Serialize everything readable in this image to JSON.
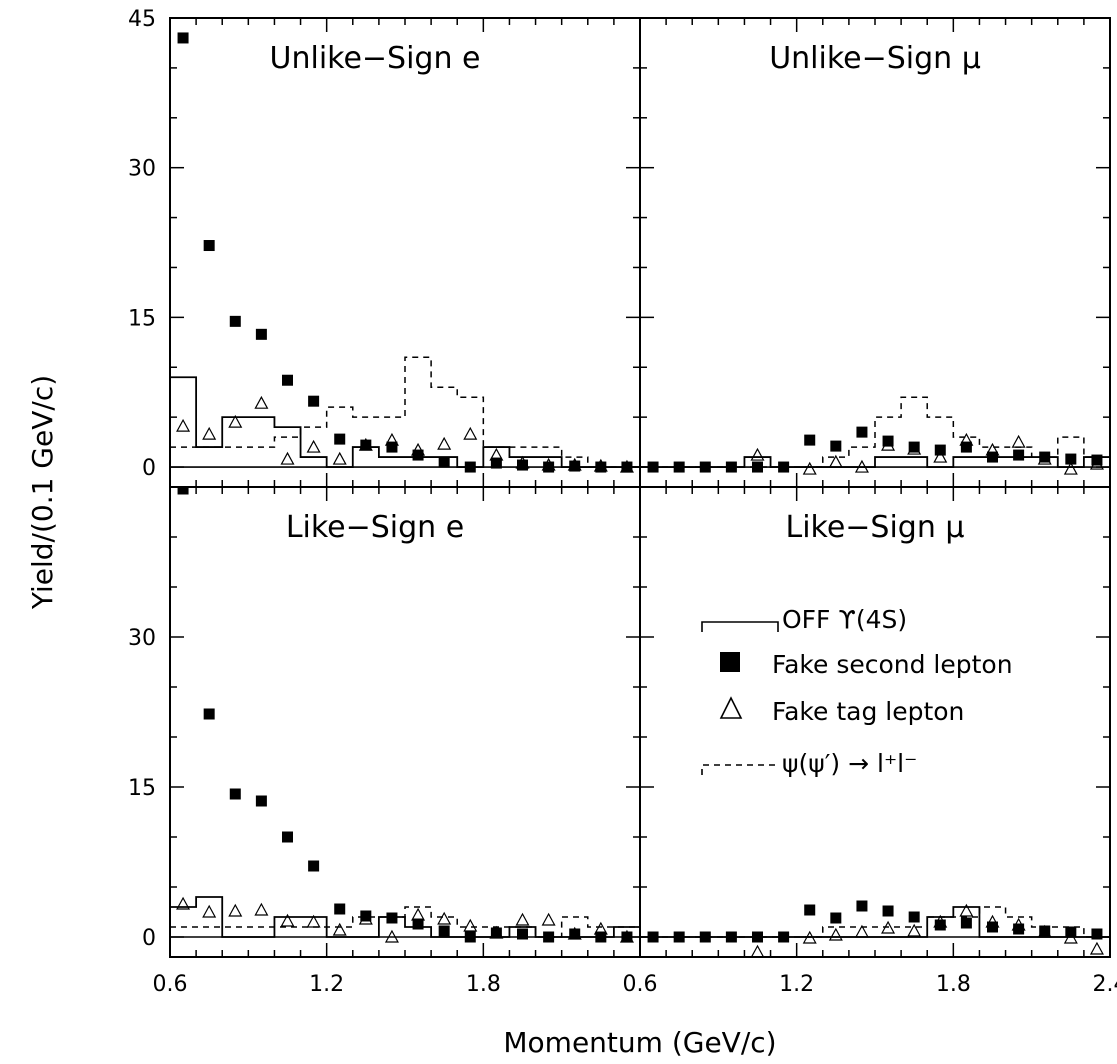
{
  "figure": {
    "ylabel": "Yield/(0.1 GeV/c)",
    "xlabel": "Momentum (GeV/c)",
    "yticks": [
      "0",
      "15",
      "30",
      "45"
    ],
    "xticks_left": [
      "0.6",
      "1.2",
      "1.8"
    ],
    "xticks_right": [
      "0.6",
      "1.2",
      "1.8",
      "2.4"
    ],
    "legend": {
      "off": "OFF ϒ(4S)",
      "fake_second": "Fake second lepton",
      "fake_tag": "Fake tag lepton",
      "psi": "ψ(ψ′) → l⁺l⁻"
    }
  },
  "chart_data": [
    {
      "type": "scatter",
      "panel": "top-left",
      "title": "Unlike−Sign e",
      "xlim": [
        0.6,
        2.4
      ],
      "ylim": [
        -2,
        45
      ],
      "bin_edges": [
        0.6,
        0.7,
        0.8,
        0.9,
        1.0,
        1.1,
        1.2,
        1.3,
        1.4,
        1.5,
        1.6,
        1.7,
        1.8,
        1.9,
        2.0,
        2.1,
        2.2,
        2.3,
        2.4,
        2.5
      ],
      "off_4s": [
        9,
        2,
        5,
        5,
        4,
        1,
        0,
        2,
        1,
        1,
        1,
        0,
        2,
        1,
        1,
        0,
        0,
        0,
        1
      ],
      "psi": [
        2,
        2,
        2,
        2,
        3,
        4,
        6,
        5,
        5,
        11,
        8,
        7,
        2,
        2,
        2,
        1,
        0,
        0,
        0
      ],
      "fake_second_x": [
        0.65,
        0.75,
        0.85,
        0.95,
        1.05,
        1.15,
        1.25,
        1.35,
        1.45,
        1.55,
        1.65,
        1.75,
        1.85,
        1.95,
        2.05,
        2.15,
        2.25,
        2.35
      ],
      "fake_second_y": [
        43,
        22.2,
        14.6,
        13.3,
        8.7,
        6.6,
        2.8,
        2.2,
        2.0,
        1.2,
        0.5,
        0,
        0.4,
        0.2,
        0,
        0.1,
        0,
        0
      ],
      "fake_tag_x": [
        0.65,
        0.75,
        0.85,
        0.95,
        1.05,
        1.15,
        1.25,
        1.35,
        1.45,
        1.55,
        1.65,
        1.75,
        1.85,
        1.95,
        2.05,
        2.15,
        2.25,
        2.35
      ],
      "fake_tag_y": [
        4.1,
        3.3,
        4.5,
        6.4,
        0.8,
        2.0,
        0.8,
        2.2,
        2.7,
        1.7,
        2.3,
        3.3,
        1.2,
        0.4,
        0.2,
        0.2,
        0.1,
        0
      ]
    },
    {
      "type": "scatter",
      "panel": "top-right",
      "title": "Unlike−Sign μ",
      "xlim": [
        0.6,
        2.4
      ],
      "ylim": [
        -2,
        45
      ],
      "bin_edges": [
        0.6,
        0.7,
        0.8,
        0.9,
        1.0,
        1.1,
        1.2,
        1.3,
        1.4,
        1.5,
        1.6,
        1.7,
        1.8,
        1.9,
        2.0,
        2.1,
        2.2,
        2.3,
        2.4,
        2.5
      ],
      "off_4s": [
        0,
        0,
        0,
        0,
        1,
        0,
        0,
        0,
        0,
        1,
        1,
        0,
        1,
        1,
        1,
        1,
        0,
        1,
        0
      ],
      "psi": [
        0,
        0,
        0,
        0,
        0,
        0,
        0,
        1,
        2,
        5,
        7,
        5,
        3,
        2,
        2,
        1,
        3,
        1,
        0
      ],
      "fake_second_x": [
        0.65,
        0.75,
        0.85,
        0.95,
        1.05,
        1.15,
        1.25,
        1.35,
        1.45,
        1.55,
        1.65,
        1.75,
        1.85,
        1.95,
        2.05,
        2.15,
        2.25,
        2.35,
        2.45
      ],
      "fake_second_y": [
        0,
        0,
        0,
        0,
        0,
        0,
        2.7,
        2.1,
        3.5,
        2.6,
        2.0,
        1.7,
        2.0,
        1.0,
        1.2,
        1.0,
        0.8,
        0.7,
        0.2
      ],
      "fake_tag_x": [
        1.05,
        1.25,
        1.35,
        1.45,
        1.55,
        1.65,
        1.75,
        1.85,
        1.95,
        2.05,
        2.15,
        2.25,
        2.35
      ],
      "fake_tag_y": [
        1.2,
        -0.2,
        0.5,
        0,
        2.2,
        1.8,
        1.0,
        2.7,
        1.7,
        2.5,
        0.8,
        -0.2,
        0.3
      ]
    },
    {
      "type": "scatter",
      "panel": "bottom-left",
      "title": "Like−Sign e",
      "xlim": [
        0.6,
        2.4
      ],
      "ylim": [
        -2,
        45
      ],
      "bin_edges": [
        0.6,
        0.7,
        0.8,
        0.9,
        1.0,
        1.1,
        1.2,
        1.3,
        1.4,
        1.5,
        1.6,
        1.7,
        1.8,
        1.9,
        2.0,
        2.1,
        2.2,
        2.3,
        2.4,
        2.5
      ],
      "off_4s": [
        3,
        4,
        0,
        0,
        2,
        2,
        0,
        0,
        2,
        1,
        0,
        0,
        0,
        1,
        0,
        0,
        0,
        1,
        0
      ],
      "psi": [
        1,
        1,
        1,
        1,
        1,
        1,
        1,
        2,
        2,
        3,
        2,
        1,
        1,
        1,
        0,
        2,
        1,
        1,
        0
      ],
      "fake_second_x": [
        0.65,
        0.75,
        0.85,
        0.95,
        1.05,
        1.15,
        1.25,
        1.35,
        1.45,
        1.55,
        1.65,
        1.75,
        1.85,
        1.95,
        2.05,
        2.15,
        2.25,
        2.35,
        2.45
      ],
      "fake_second_y": [
        44.8,
        22.3,
        14.3,
        13.6,
        10.0,
        7.1,
        2.8,
        2.1,
        1.9,
        1.3,
        0.6,
        0,
        0.4,
        0.3,
        0,
        0.3,
        0,
        0,
        0
      ],
      "fake_tag_x": [
        0.65,
        0.75,
        0.85,
        0.95,
        1.05,
        1.15,
        1.25,
        1.35,
        1.45,
        1.55,
        1.65,
        1.75,
        1.85,
        1.95,
        2.05,
        2.15,
        2.25,
        2.35
      ],
      "fake_tag_y": [
        3.3,
        2.5,
        2.6,
        2.7,
        1.6,
        1.5,
        0.7,
        1.8,
        0,
        2.2,
        1.8,
        1.1,
        0.4,
        1.7,
        1.7,
        0.3,
        0.8,
        0
      ]
    },
    {
      "type": "scatter",
      "panel": "bottom-right",
      "title": "Like−Sign μ",
      "xlim": [
        0.6,
        2.4
      ],
      "ylim": [
        -2,
        45
      ],
      "bin_edges": [
        0.6,
        0.7,
        0.8,
        0.9,
        1.0,
        1.1,
        1.2,
        1.3,
        1.4,
        1.5,
        1.6,
        1.7,
        1.8,
        1.9,
        2.0,
        2.1,
        2.2,
        2.3,
        2.4,
        2.5
      ],
      "off_4s": [
        0,
        0,
        0,
        0,
        0,
        0,
        0,
        0,
        0,
        0,
        0,
        2,
        3,
        0,
        0,
        0,
        0,
        0,
        0
      ],
      "psi": [
        0,
        0,
        0,
        0,
        0,
        0,
        0,
        1,
        1,
        1,
        1,
        2,
        2,
        3,
        2,
        1,
        1,
        0,
        0
      ],
      "fake_second_x": [
        0.65,
        0.75,
        0.85,
        0.95,
        1.05,
        1.15,
        1.25,
        1.35,
        1.45,
        1.55,
        1.65,
        1.75,
        1.85,
        1.95,
        2.05,
        2.15,
        2.25,
        2.35,
        2.45
      ],
      "fake_second_y": [
        0,
        0,
        0,
        0,
        0,
        0,
        2.7,
        1.9,
        3.1,
        2.6,
        2.0,
        1.2,
        1.4,
        1.0,
        0.8,
        0.6,
        0.5,
        0.3,
        0
      ],
      "fake_tag_x": [
        1.05,
        1.25,
        1.35,
        1.45,
        1.55,
        1.65,
        1.75,
        1.85,
        1.95,
        2.05,
        2.15,
        2.25,
        2.35
      ],
      "fake_tag_y": [
        -1.5,
        -0.1,
        0.2,
        0.5,
        0.9,
        0.6,
        1.5,
        2.6,
        1.5,
        1.2,
        0.5,
        -0.1,
        -1.2
      ]
    }
  ]
}
